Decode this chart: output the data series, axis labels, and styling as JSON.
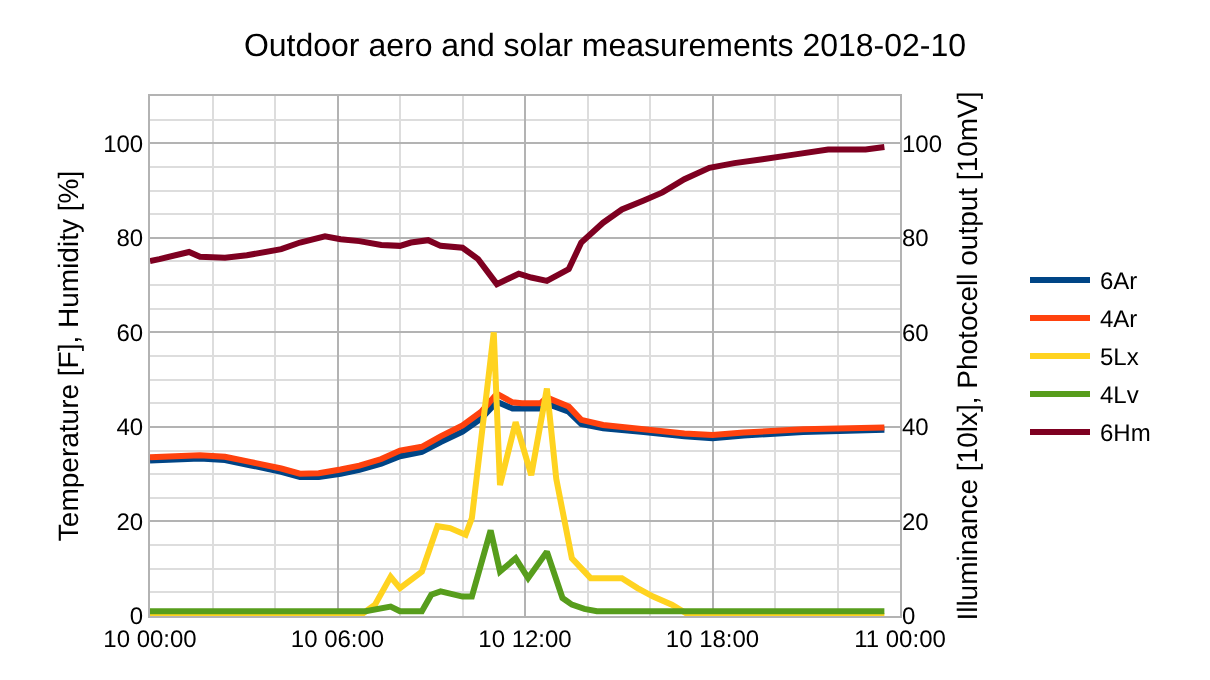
{
  "chart_data": {
    "type": "line",
    "title": "Outdoor aero and solar measurements 2018-02-10",
    "ylabel": "Temperature [F], Humidity [%]",
    "y2label": "Illuminance [10lx], Photocell output [10mV]",
    "xlim": [
      "2018-02-10T00:00",
      "2018-02-11T00:00"
    ],
    "xticks": [
      {
        "value": "2018-02-10T00:00",
        "label": "10 00:00"
      },
      {
        "value": "2018-02-10T06:00",
        "label": "10 06:00"
      },
      {
        "value": "2018-02-10T12:00",
        "label": "10 12:00"
      },
      {
        "value": "2018-02-10T18:00",
        "label": "10 18:00"
      },
      {
        "value": "2018-02-11T00:00",
        "label": "11 00:00"
      }
    ],
    "ylim": [
      0,
      110
    ],
    "yticks": [
      0,
      20,
      40,
      60,
      80,
      100
    ],
    "y2lim": [
      0,
      110
    ],
    "y2ticks": [
      0,
      20,
      40,
      60,
      80,
      100
    ],
    "grid": true,
    "legend": "right",
    "marker": "none",
    "line_style": "solid",
    "series": [
      {
        "name": "6Ar",
        "color": "#004586",
        "x": [
          "2018-02-10T00:00",
          "2018-02-10T01:36",
          "2018-02-10T02:24",
          "2018-02-10T03:12",
          "2018-02-10T04:12",
          "2018-02-10T04:48",
          "2018-02-10T05:24",
          "2018-02-10T06:06",
          "2018-02-10T06:42",
          "2018-02-10T07:24",
          "2018-02-10T08:00",
          "2018-02-10T08:42",
          "2018-02-10T09:18",
          "2018-02-10T10:00",
          "2018-02-10T10:36",
          "2018-02-10T11:06",
          "2018-02-10T11:36",
          "2018-02-10T11:54",
          "2018-02-10T12:30",
          "2018-02-10T12:42",
          "2018-02-10T13:24",
          "2018-02-10T13:48",
          "2018-02-10T14:30",
          "2018-02-10T15:48",
          "2018-02-10T17:06",
          "2018-02-10T18:00",
          "2018-02-10T19:00",
          "2018-02-10T20:54",
          "2018-02-10T23:30"
        ],
        "values": [
          32.9,
          33.3,
          33,
          31.9,
          30.5,
          29.4,
          29.4,
          30.1,
          30.9,
          32.2,
          33.8,
          34.7,
          36.8,
          39,
          41.8,
          45.3,
          43.9,
          43.9,
          43.9,
          44.9,
          43.2,
          40.6,
          39.7,
          38.9,
          38,
          37.6,
          38.2,
          38.9,
          39.4
        ]
      },
      {
        "name": "4Ar",
        "color": "#ff420e",
        "x": [
          "2018-02-10T00:00",
          "2018-02-10T01:36",
          "2018-02-10T02:24",
          "2018-02-10T03:12",
          "2018-02-10T04:12",
          "2018-02-10T04:48",
          "2018-02-10T05:24",
          "2018-02-10T06:06",
          "2018-02-10T06:42",
          "2018-02-10T07:24",
          "2018-02-10T08:00",
          "2018-02-10T08:42",
          "2018-02-10T09:18",
          "2018-02-10T10:00",
          "2018-02-10T10:36",
          "2018-02-10T11:06",
          "2018-02-10T11:36",
          "2018-02-10T11:54",
          "2018-02-10T12:30",
          "2018-02-10T12:42",
          "2018-02-10T13:24",
          "2018-02-10T13:48",
          "2018-02-10T14:30",
          "2018-02-10T15:48",
          "2018-02-10T17:06",
          "2018-02-10T18:00",
          "2018-02-10T19:00",
          "2018-02-10T20:54",
          "2018-02-10T23:30"
        ],
        "values": [
          33.6,
          34,
          33.7,
          32.6,
          31.2,
          30.1,
          30.2,
          31,
          31.8,
          33.2,
          35,
          35.8,
          38,
          40.3,
          43.2,
          47,
          45.2,
          45,
          45,
          46.2,
          44.3,
          41.5,
          40.4,
          39.5,
          38.6,
          38.3,
          38.8,
          39.5,
          39.9
        ]
      },
      {
        "name": "5Lx",
        "color": "#ffd320",
        "x": [
          "2018-02-10T00:00",
          "2018-02-10T06:42",
          "2018-02-10T07:12",
          "2018-02-10T07:42",
          "2018-02-10T08:00",
          "2018-02-10T08:42",
          "2018-02-10T09:12",
          "2018-02-10T09:36",
          "2018-02-10T10:06",
          "2018-02-10T10:18",
          "2018-02-10T11:00",
          "2018-02-10T11:12",
          "2018-02-10T11:42",
          "2018-02-10T12:12",
          "2018-02-10T12:42",
          "2018-02-10T13:00",
          "2018-02-10T13:30",
          "2018-02-10T14:06",
          "2018-02-10T14:30",
          "2018-02-10T15:06",
          "2018-02-10T15:36",
          "2018-02-10T16:06",
          "2018-02-10T16:42",
          "2018-02-10T17:12",
          "2018-02-10T17:48",
          "2018-02-10T23:30"
        ],
        "values": [
          0,
          0,
          2.4,
          8.3,
          5.9,
          9.4,
          19,
          18.6,
          17.2,
          20.7,
          60,
          27.7,
          41,
          29.8,
          48.1,
          29,
          12.2,
          8,
          8,
          8,
          5.9,
          4.1,
          2.4,
          0.4,
          0,
          0
        ]
      },
      {
        "name": "4Lv",
        "color": "#579d1c",
        "x": [
          "2018-02-10T00:00",
          "2018-02-10T06:54",
          "2018-02-10T07:42",
          "2018-02-10T08:00",
          "2018-02-10T08:42",
          "2018-02-10T09:00",
          "2018-02-10T09:18",
          "2018-02-10T10:00",
          "2018-02-10T10:18",
          "2018-02-10T10:54",
          "2018-02-10T11:12",
          "2018-02-10T11:42",
          "2018-02-10T12:06",
          "2018-02-10T12:42",
          "2018-02-10T13:12",
          "2018-02-10T13:30",
          "2018-02-10T13:54",
          "2018-02-10T14:18",
          "2018-02-10T23:30"
        ],
        "values": [
          1,
          1,
          2,
          1,
          1,
          4.5,
          5.2,
          4.1,
          4.1,
          18.1,
          9.4,
          12.2,
          8,
          13.6,
          3.8,
          2.4,
          1.5,
          1,
          1
        ]
      },
      {
        "name": "6Hm",
        "color": "#7e0021",
        "x": [
          "2018-02-10T00:00",
          "2018-02-10T00:18",
          "2018-02-10T01:15",
          "2018-02-10T01:36",
          "2018-02-10T02:24",
          "2018-02-10T03:06",
          "2018-02-10T04:12",
          "2018-02-10T04:48",
          "2018-02-10T05:36",
          "2018-02-10T06:06",
          "2018-02-10T06:42",
          "2018-02-10T07:24",
          "2018-02-10T08:00",
          "2018-02-10T08:21",
          "2018-02-10T08:54",
          "2018-02-10T09:18",
          "2018-02-10T10:00",
          "2018-02-10T10:30",
          "2018-02-10T11:06",
          "2018-02-10T11:48",
          "2018-02-10T12:12",
          "2018-02-10T12:42",
          "2018-02-10T13:24",
          "2018-02-10T13:48",
          "2018-02-10T14:30",
          "2018-02-10T15:06",
          "2018-02-10T15:48",
          "2018-02-10T16:24",
          "2018-02-10T17:06",
          "2018-02-10T17:54",
          "2018-02-10T18:42",
          "2018-02-10T19:36",
          "2018-02-10T20:36",
          "2018-02-10T21:42",
          "2018-02-10T22:54",
          "2018-02-10T23:30"
        ],
        "values": [
          75.1,
          75.5,
          77,
          76,
          75.8,
          76.3,
          77.6,
          79,
          80.3,
          79.7,
          79.3,
          78.5,
          78.3,
          79,
          79.5,
          78.3,
          77.9,
          75.5,
          70.2,
          72.4,
          71.6,
          70.9,
          73.4,
          79,
          83.2,
          86,
          87.9,
          89.6,
          92.4,
          94.8,
          95.8,
          96.6,
          97.6,
          98.7,
          98.7,
          99.2
        ]
      }
    ]
  }
}
